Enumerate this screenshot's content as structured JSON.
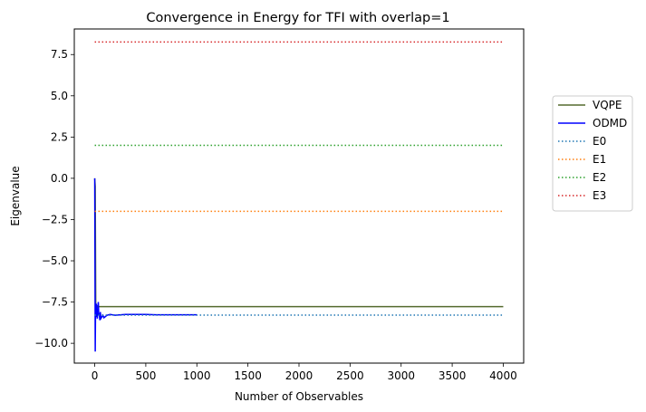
{
  "chart_data": {
    "type": "line",
    "title": "Convergence in Energy for TFI with overlap=1",
    "xlabel": "Number of Observables",
    "ylabel": "Eigenvalue",
    "xlim": [
      -200,
      4200
    ],
    "ylim": [
      -11.2,
      9.05
    ],
    "xticks": [
      0,
      500,
      1000,
      1500,
      2000,
      2500,
      3000,
      3500,
      4000
    ],
    "yticks": [
      -10.0,
      -7.5,
      -5.0,
      -2.5,
      0.0,
      2.5,
      5.0,
      7.5
    ],
    "grid": false,
    "legend_position": "outside-top-right",
    "series": [
      {
        "name": "VQPE",
        "style": "solid",
        "color": "#556b2f",
        "x": [
          0,
          5,
          10,
          15,
          20,
          25,
          30,
          40,
          50,
          100,
          1000,
          2000,
          3000,
          4000
        ],
        "y": [
          0.0,
          -0.5,
          -7.7,
          -7.9,
          -7.8,
          -7.75,
          -7.8,
          -7.78,
          -7.78,
          -7.78,
          -7.78,
          -7.78,
          -7.78,
          -7.78
        ]
      },
      {
        "name": "ODMD",
        "style": "solid",
        "color": "#0000ff",
        "x": [
          0,
          5,
          8,
          12,
          16,
          20,
          25,
          30,
          35,
          40,
          45,
          50,
          55,
          60,
          70,
          80,
          90,
          100,
          120,
          150,
          200,
          300,
          400,
          500,
          600,
          700,
          800,
          900,
          1000
        ],
        "y": [
          0.0,
          -10.5,
          -8.0,
          -8.4,
          -7.6,
          -8.2,
          -8.5,
          -8.1,
          -7.5,
          -8.3,
          -8.2,
          -8.6,
          -8.1,
          -8.5,
          -8.4,
          -8.3,
          -8.45,
          -8.4,
          -8.3,
          -8.25,
          -8.3,
          -8.25,
          -8.25,
          -8.25,
          -8.27,
          -8.27,
          -8.27,
          -8.27,
          -8.27
        ]
      },
      {
        "name": "E0",
        "style": "dotted",
        "color": "#1f77b4",
        "x": [
          0,
          4000
        ],
        "y": [
          -8.29,
          -8.29
        ]
      },
      {
        "name": "E1",
        "style": "dotted",
        "color": "#ff7f0e",
        "x": [
          0,
          4000
        ],
        "y": [
          -2.0,
          -2.0
        ]
      },
      {
        "name": "E2",
        "style": "dotted",
        "color": "#2ca02c",
        "x": [
          0,
          4000
        ],
        "y": [
          2.0,
          2.0
        ]
      },
      {
        "name": "E3",
        "style": "dotted",
        "color": "#d62728",
        "x": [
          0,
          4000
        ],
        "y": [
          8.26,
          8.26
        ]
      }
    ]
  }
}
